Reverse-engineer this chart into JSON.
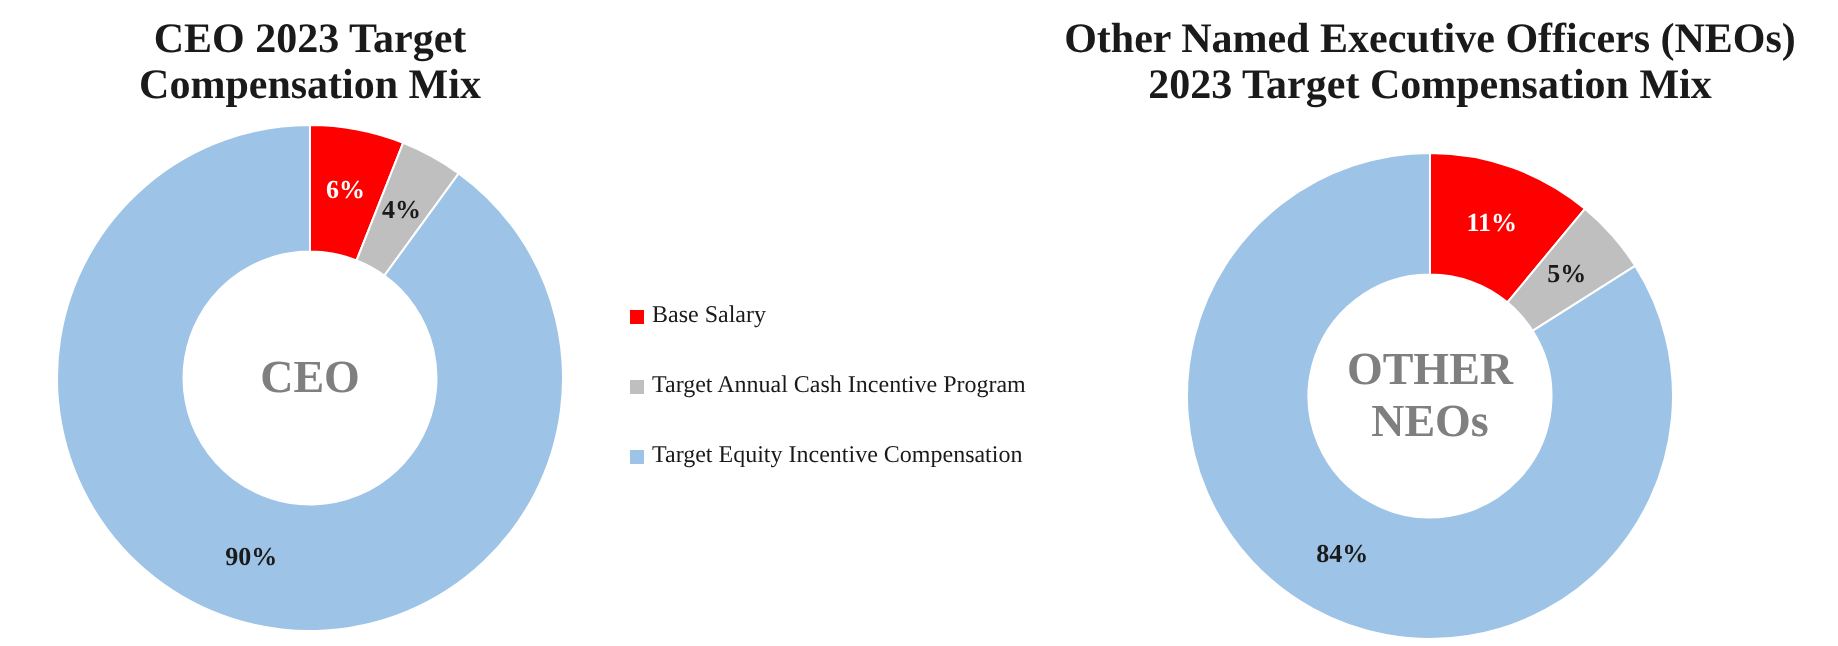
{
  "chart_data": [
    {
      "type": "donut",
      "title": "CEO 2023 Target Compensation Mix",
      "categories": [
        "Base Salary",
        "Target Annual Cash Incentive Program",
        "Target Equity Incentive Compensation"
      ],
      "values": [
        6,
        4,
        90
      ],
      "colors": [
        "#ff0000",
        "#bfbfbf",
        "#9dc3e6"
      ],
      "value_labels": [
        "6%",
        "4%",
        "90%"
      ],
      "annotations": [
        "CEO"
      ],
      "legend": "right"
    },
    {
      "type": "donut",
      "title": "Other Named Executive Officers (NEOs) 2023 Target Compensation Mix",
      "categories": [
        null,
        null,
        null
      ],
      "values": [
        11,
        5,
        84
      ],
      "colors": [
        "#ff0000",
        "#bfbfbf",
        "#9dc3e6"
      ],
      "value_labels": [
        "11%",
        "5%",
        "84%"
      ],
      "annotations": [
        "OTHER NEOs"
      ]
    }
  ]
}
